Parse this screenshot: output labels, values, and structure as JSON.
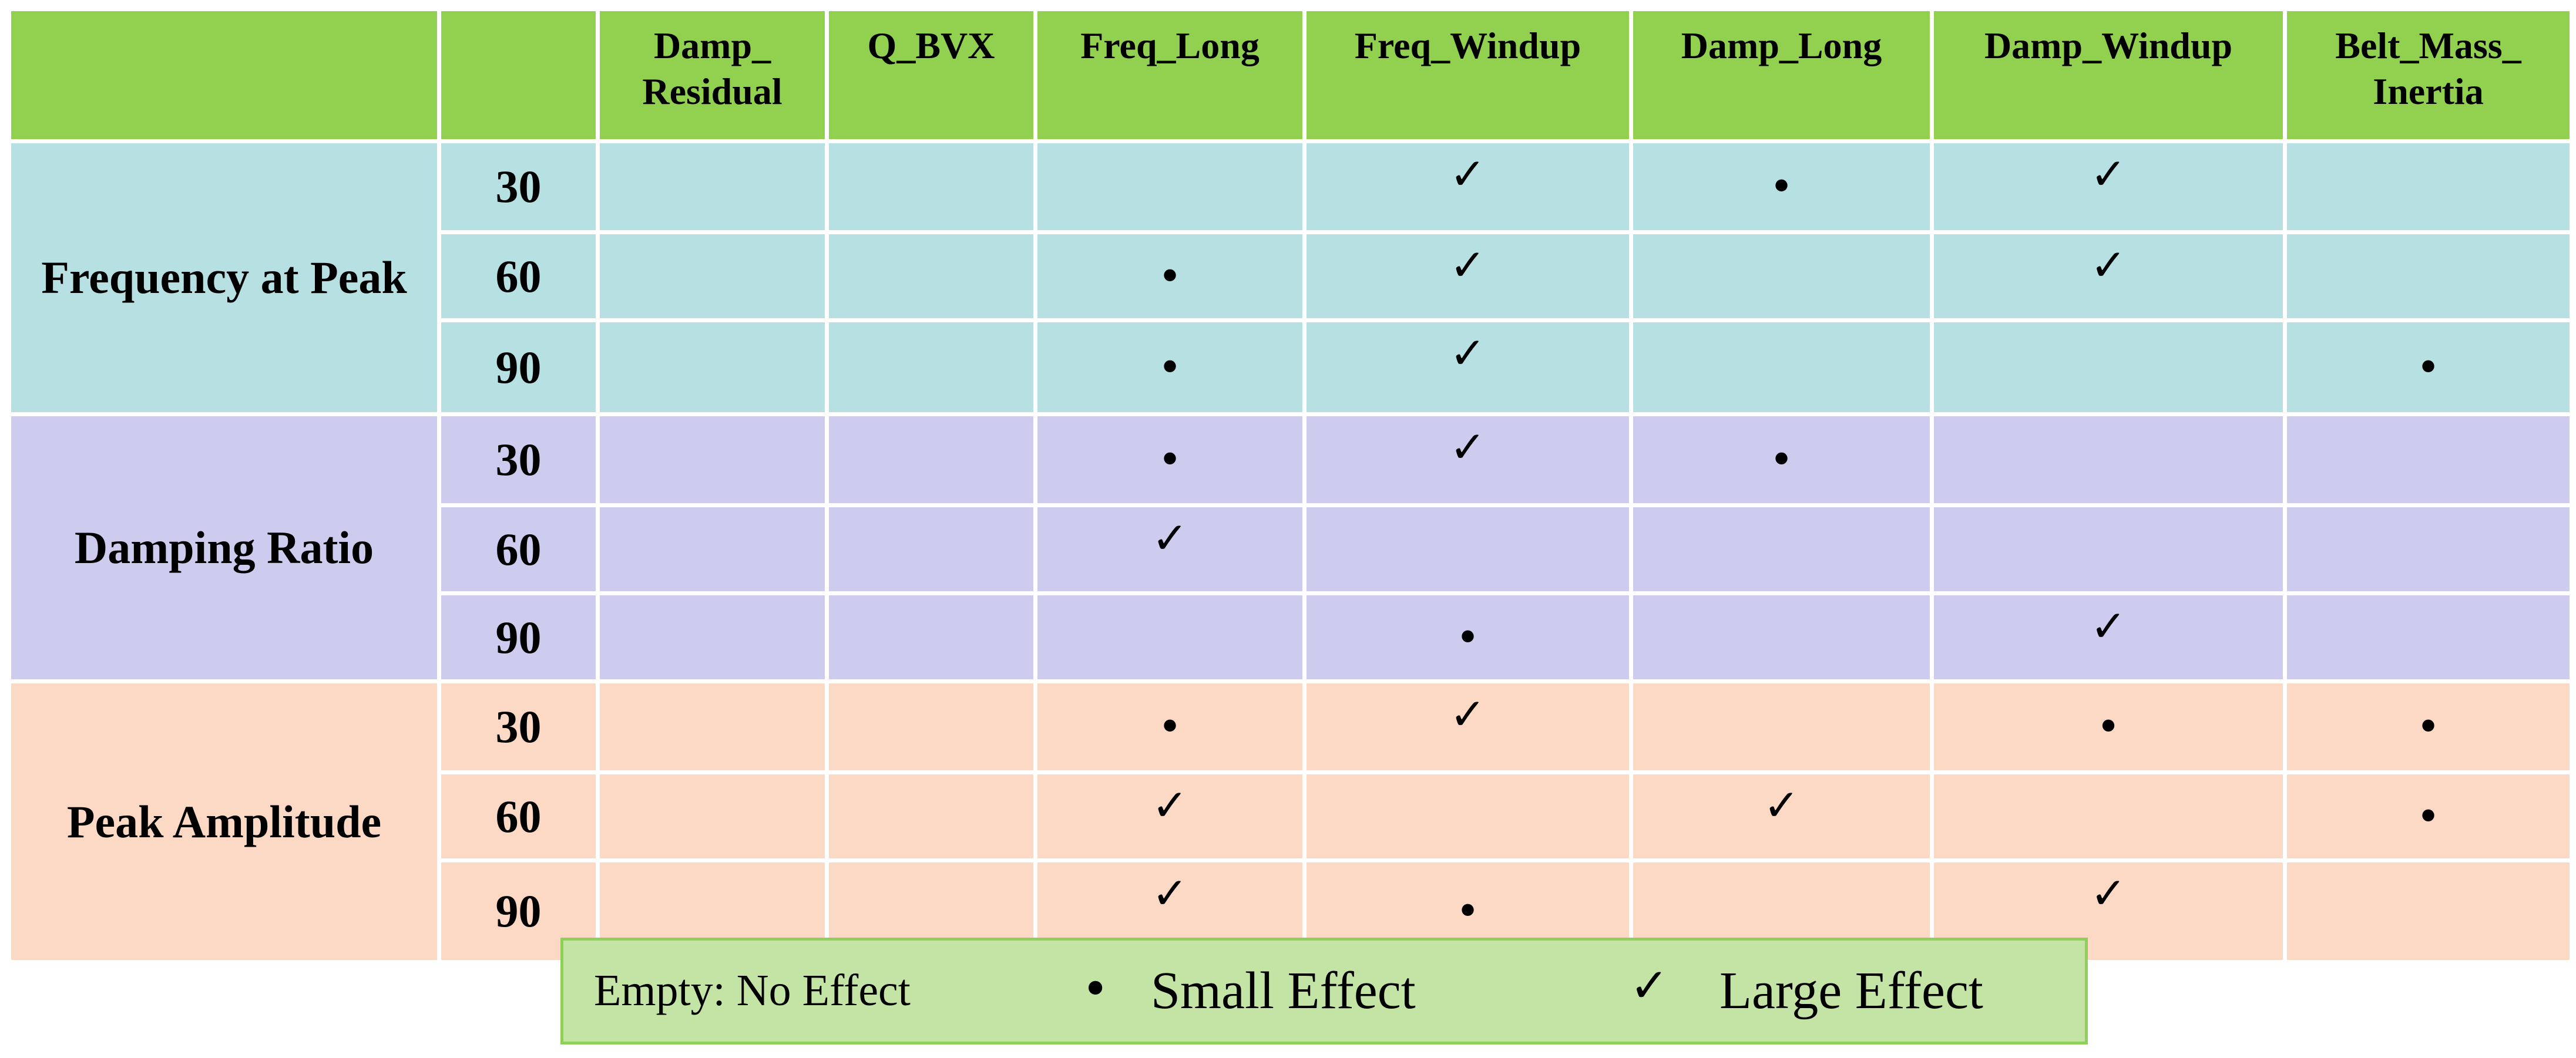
{
  "colors": {
    "header_bg": "#92d050",
    "group_colors": [
      "#b7e0e3",
      "#ceccee",
      "#fbd9c4"
    ],
    "legend_bg": "#c4e4a5"
  },
  "header": {
    "columns": [
      "Damp_ Residual",
      "Q_BVX",
      "Freq_Long",
      "Freq_Windup",
      "Damp_Long",
      "Damp_Windup",
      "Belt_Mass_ Inertia"
    ]
  },
  "symbols": {
    "small": "•",
    "large": "✓"
  },
  "groups": [
    {
      "label": "Frequency at Peak",
      "rows": [
        {
          "angle": "30",
          "cells": [
            "",
            "",
            "",
            "large",
            "small",
            "large",
            ""
          ]
        },
        {
          "angle": "60",
          "cells": [
            "",
            "",
            "small",
            "large",
            "",
            "large",
            ""
          ]
        },
        {
          "angle": "90",
          "cells": [
            "",
            "",
            "small",
            "large",
            "",
            "",
            "small"
          ]
        }
      ]
    },
    {
      "label": "Damping Ratio",
      "rows": [
        {
          "angle": "30",
          "cells": [
            "",
            "",
            "small",
            "large",
            "small",
            "",
            ""
          ]
        },
        {
          "angle": "60",
          "cells": [
            "",
            "",
            "large",
            "",
            "",
            "",
            ""
          ]
        },
        {
          "angle": "90",
          "cells": [
            "",
            "",
            "",
            "small",
            "",
            "large",
            ""
          ]
        }
      ]
    },
    {
      "label": "Peak Amplitude",
      "rows": [
        {
          "angle": "30",
          "cells": [
            "",
            "",
            "small",
            "large",
            "",
            "small",
            "small"
          ]
        },
        {
          "angle": "60",
          "cells": [
            "",
            "",
            "large",
            "",
            "large",
            "",
            "small"
          ]
        },
        {
          "angle": "90",
          "cells": [
            "",
            "",
            "large",
            "small",
            "",
            "large",
            ""
          ]
        }
      ]
    }
  ],
  "legend": {
    "empty_text": "Empty: No Effect",
    "small_symbol": "•",
    "small_text": "Small Effect",
    "large_symbol": "✓",
    "large_text": "Large Effect"
  }
}
